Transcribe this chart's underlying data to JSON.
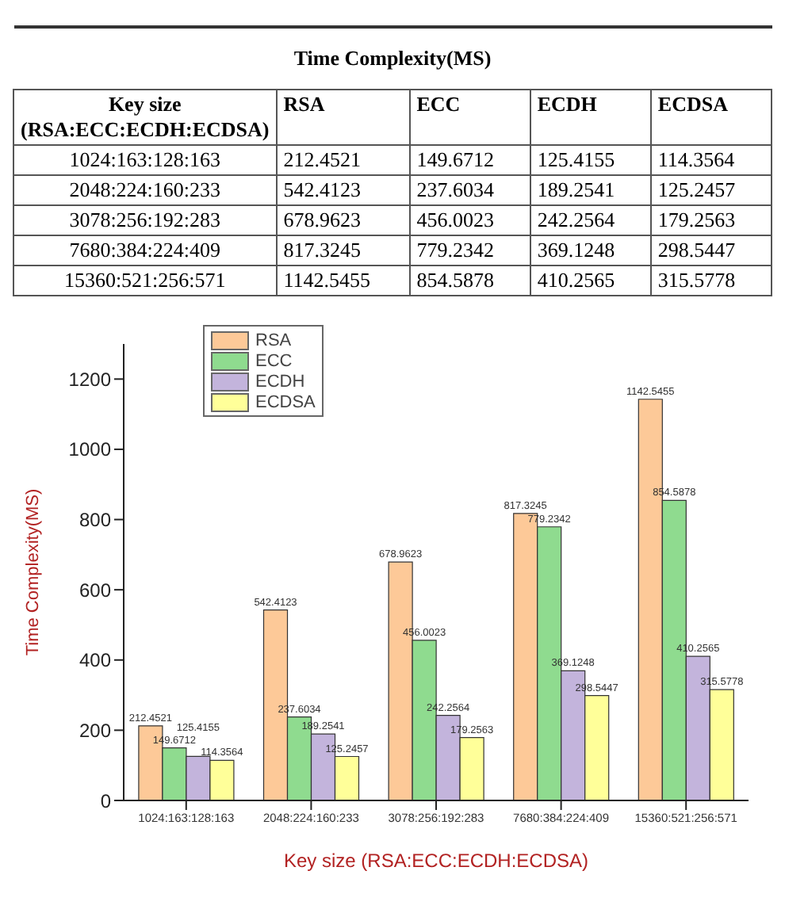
{
  "chart_data": [
    {
      "type": "other",
      "title": "Time Complexity(MS)",
      "xlabel": "Key size (RSA:ECC:ECDH:ECDSA)",
      "categories": [
        "1024:163:128:163",
        "2048:224:160:233",
        "3078:256:192:283",
        "7680:384:224:409",
        "15360:521:256:571"
      ],
      "series": [
        {
          "name": "RSA",
          "values": [
            212.4521,
            542.4123,
            678.9623,
            817.3245,
            1142.5455
          ]
        },
        {
          "name": "ECC",
          "values": [
            149.6712,
            237.6034,
            456.0023,
            779.2342,
            854.5878
          ]
        },
        {
          "name": "ECDH",
          "values": [
            125.4155,
            189.2541,
            242.2564,
            369.1248,
            410.2565
          ]
        },
        {
          "name": "ECDSA",
          "values": [
            114.3564,
            125.2457,
            179.2563,
            298.5447,
            315.5778
          ]
        }
      ],
      "data_labels": true
    },
    {
      "type": "bar",
      "xlabel": "Key size (RSA:ECC:ECDH:ECDSA)",
      "ylabel": "Time Complexity(MS)",
      "categories": [
        "1024:163:128:163",
        "2048:224:160:233",
        "3078:256:192:283",
        "7680:384:224:409",
        "15360:521:256:571"
      ],
      "series": [
        {
          "name": "RSA",
          "color": "#fdc998",
          "values": [
            212.4521,
            542.4123,
            678.9623,
            817.3245,
            1142.5455
          ]
        },
        {
          "name": "ECC",
          "color": "#8fdb8f",
          "values": [
            149.6712,
            237.6034,
            456.0023,
            779.2342,
            854.5878
          ]
        },
        {
          "name": "ECDH",
          "color": "#c3b4dc",
          "values": [
            125.4155,
            189.2541,
            242.2564,
            369.1248,
            410.2565
          ]
        },
        {
          "name": "ECDSA",
          "color": "#ffff99",
          "values": [
            114.3564,
            125.2457,
            179.2563,
            298.5447,
            315.5778
          ]
        }
      ],
      "ylim": [
        0,
        1300
      ],
      "yticks": [
        0,
        200,
        400,
        600,
        800,
        1000,
        1200
      ],
      "grid": false,
      "legend": "top left",
      "data_labels": true
    }
  ]
}
